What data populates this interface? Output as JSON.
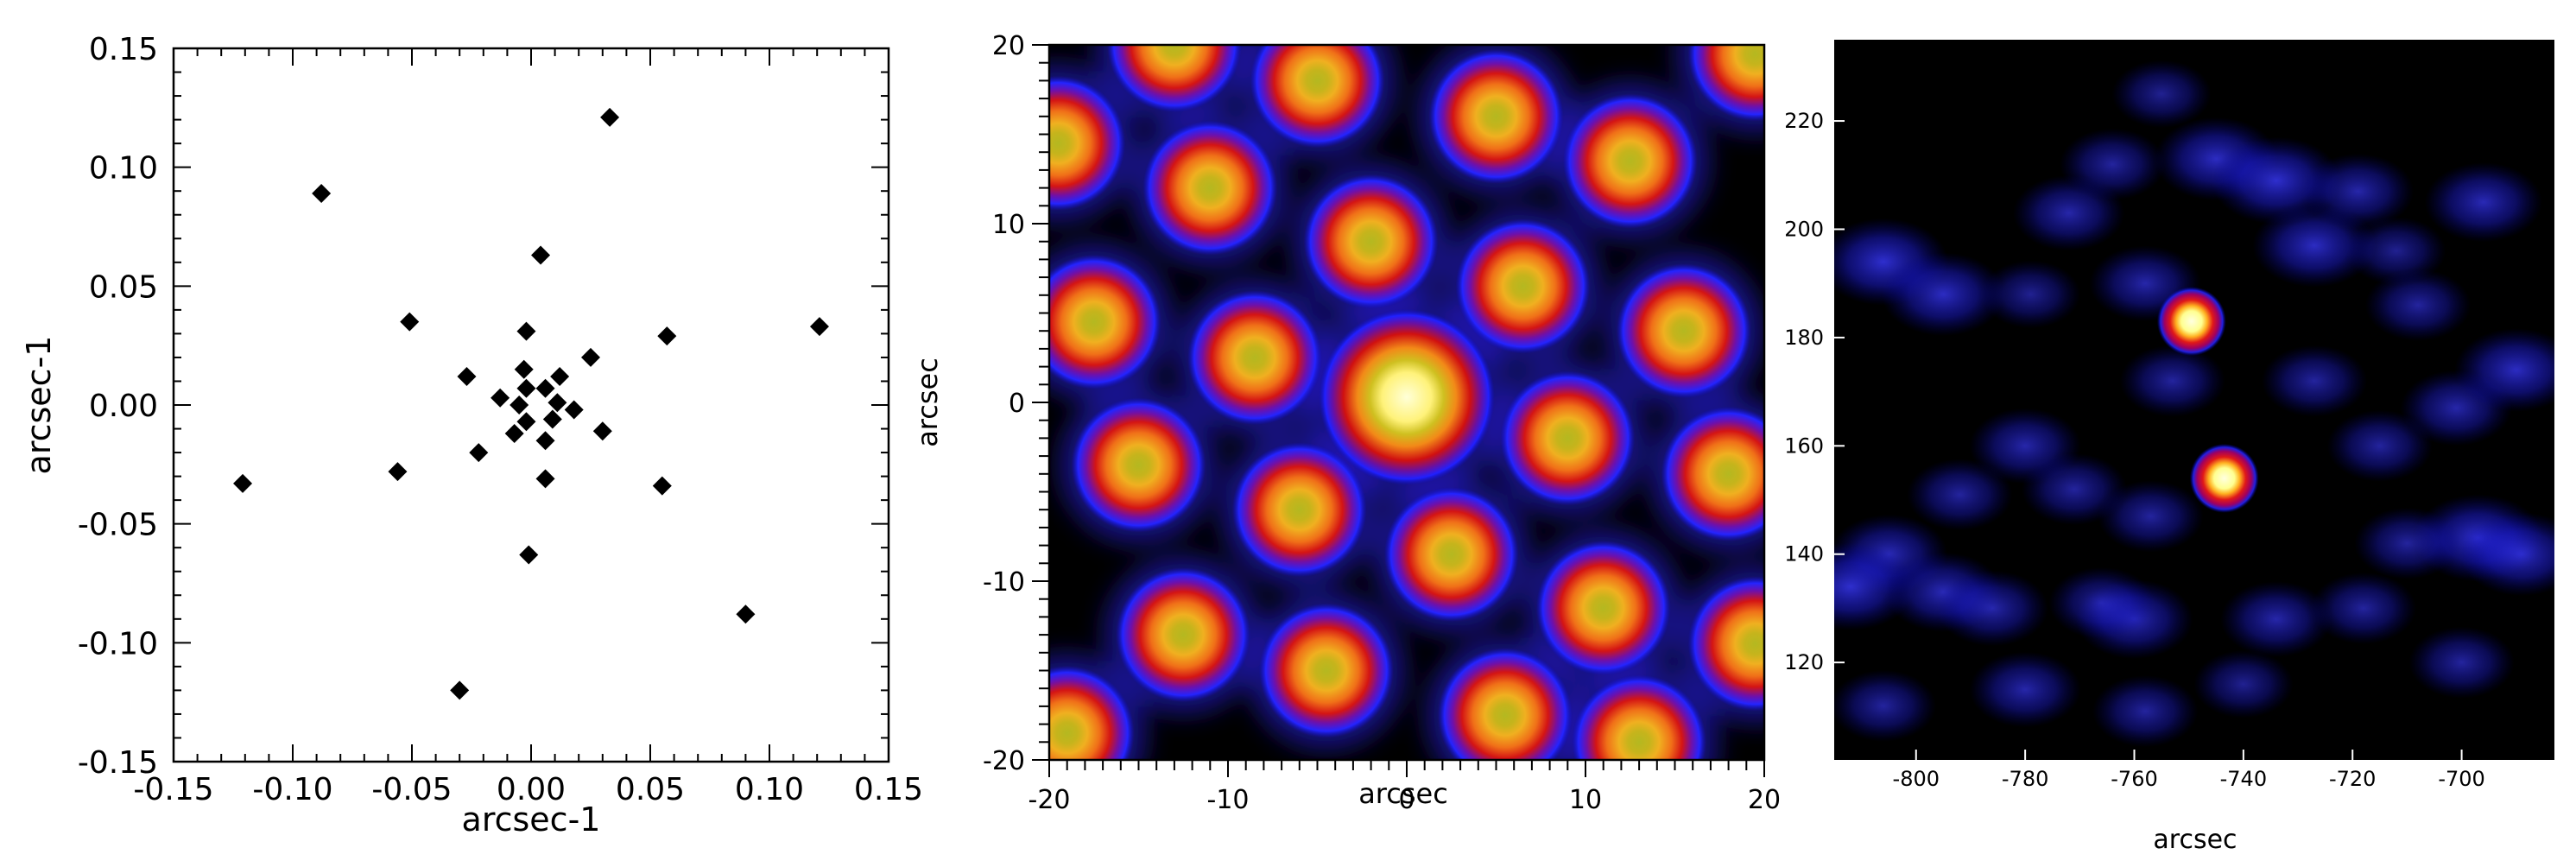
{
  "chart_data": [
    {
      "type": "scatter",
      "xlabel": "arcsec-1",
      "ylabel": "arcsec-1",
      "xlim": [
        -0.15,
        0.15
      ],
      "ylim": [
        -0.15,
        0.15
      ],
      "xticks": [
        -0.15,
        -0.1,
        -0.05,
        0.0,
        0.05,
        0.1,
        0.15
      ],
      "yticks": [
        -0.15,
        -0.1,
        -0.05,
        0.0,
        0.05,
        0.1,
        0.15
      ],
      "xtick_labels": [
        "-0.15",
        "-0.10",
        "-0.05",
        "0.00",
        "0.05",
        "0.10",
        "0.15"
      ],
      "ytick_labels": [
        "-0.15",
        "-0.10",
        "-0.05",
        "0.00",
        "0.05",
        "0.10",
        "0.15"
      ],
      "marker": "diamond",
      "marker_color": "#000000",
      "points": [
        {
          "x": 0.033,
          "y": 0.121
        },
        {
          "x": -0.088,
          "y": 0.089
        },
        {
          "x": 0.004,
          "y": 0.063
        },
        {
          "x": -0.051,
          "y": 0.035
        },
        {
          "x": 0.121,
          "y": 0.033
        },
        {
          "x": -0.002,
          "y": 0.031
        },
        {
          "x": 0.057,
          "y": 0.029
        },
        {
          "x": 0.025,
          "y": 0.02
        },
        {
          "x": -0.003,
          "y": 0.015
        },
        {
          "x": -0.027,
          "y": 0.012
        },
        {
          "x": 0.012,
          "y": 0.012
        },
        {
          "x": -0.002,
          "y": 0.007
        },
        {
          "x": 0.006,
          "y": 0.007
        },
        {
          "x": -0.013,
          "y": 0.003
        },
        {
          "x": 0.011,
          "y": 0.001
        },
        {
          "x": -0.005,
          "y": 0.0
        },
        {
          "x": 0.018,
          "y": -0.002
        },
        {
          "x": -0.002,
          "y": -0.007
        },
        {
          "x": 0.009,
          "y": -0.006
        },
        {
          "x": -0.007,
          "y": -0.012
        },
        {
          "x": 0.03,
          "y": -0.011
        },
        {
          "x": 0.006,
          "y": -0.015
        },
        {
          "x": -0.022,
          "y": -0.02
        },
        {
          "x": -0.121,
          "y": -0.033
        },
        {
          "x": -0.056,
          "y": -0.028
        },
        {
          "x": 0.006,
          "y": -0.031
        },
        {
          "x": 0.055,
          "y": -0.034
        },
        {
          "x": -0.001,
          "y": -0.063
        },
        {
          "x": 0.09,
          "y": -0.088
        },
        {
          "x": -0.03,
          "y": -0.12
        }
      ]
    },
    {
      "type": "heatmap",
      "xlabel": "arcsec",
      "ylabel": "arcsec",
      "xlim": [
        -20,
        20
      ],
      "ylim": [
        -20,
        20
      ],
      "xticks": [
        -20,
        -10,
        0,
        10,
        20
      ],
      "yticks": [
        -20,
        -10,
        0,
        10,
        20
      ],
      "xtick_labels": [
        "-20",
        "-10",
        "0",
        "10",
        "20"
      ],
      "ytick_labels": [
        "-20",
        "-10",
        "0",
        "10",
        "20"
      ],
      "colormap": [
        "#000000",
        "#1a10ff",
        "#cc0010",
        "#ff6010",
        "#f0c010",
        "#ffffc0"
      ],
      "peaks": [
        {
          "x": 0,
          "y": 0.3,
          "level": 1.0
        },
        {
          "x": -11,
          "y": 12,
          "level": 0.75
        },
        {
          "x": -5,
          "y": 18,
          "level": 0.75
        },
        {
          "x": 5,
          "y": 16,
          "level": 0.75
        },
        {
          "x": 12.5,
          "y": 13.5,
          "level": 0.75
        },
        {
          "x": -2,
          "y": 9,
          "level": 0.75
        },
        {
          "x": 6.5,
          "y": 6.5,
          "level": 0.75
        },
        {
          "x": -17.5,
          "y": 4.5,
          "level": 0.75
        },
        {
          "x": -8.5,
          "y": 2.5,
          "level": 0.75
        },
        {
          "x": 15.5,
          "y": 4,
          "level": 0.75
        },
        {
          "x": 9,
          "y": -2,
          "level": 0.75
        },
        {
          "x": -15,
          "y": -3.5,
          "level": 0.75
        },
        {
          "x": 18,
          "y": -4,
          "level": 0.75
        },
        {
          "x": -6,
          "y": -6,
          "level": 0.75
        },
        {
          "x": 2.5,
          "y": -8.5,
          "level": 0.75
        },
        {
          "x": 11,
          "y": -11.5,
          "level": 0.75
        },
        {
          "x": -12.5,
          "y": -13,
          "level": 0.75
        },
        {
          "x": -4.5,
          "y": -15,
          "level": 0.75
        },
        {
          "x": 5.5,
          "y": -17.5,
          "level": 0.75
        },
        {
          "x": 13,
          "y": -19,
          "level": 0.75
        },
        {
          "x": -19,
          "y": -18.5,
          "level": 0.75
        },
        {
          "x": -13,
          "y": 20,
          "level": 0.75
        },
        {
          "x": 19.5,
          "y": 19.5,
          "level": 0.75
        },
        {
          "x": -19.5,
          "y": 14.5,
          "level": 0.75
        },
        {
          "x": 19.5,
          "y": -13.5,
          "level": 0.75
        }
      ]
    },
    {
      "type": "heatmap",
      "xlabel": "arcsec",
      "ylabel": "",
      "xlim": [
        -815,
        -683
      ],
      "ylim": [
        102,
        235
      ],
      "xticks": [
        -800,
        -780,
        -760,
        -740,
        -720,
        -700
      ],
      "yticks": [
        120,
        140,
        160,
        180,
        200,
        220
      ],
      "xtick_labels": [
        "-800",
        "-780",
        "-760",
        "-740",
        "-720",
        "-700"
      ],
      "ytick_labels": [
        "120",
        "140",
        "160",
        "180",
        "200",
        "220"
      ],
      "colormap": [
        "#000000",
        "#0000c8",
        "#3030ff",
        "#cc0010",
        "#ff8010",
        "#ffffa0"
      ],
      "sources": [
        {
          "x": -749.5,
          "y": 183,
          "level": 1.0
        },
        {
          "x": -743.5,
          "y": 154,
          "level": 1.0
        }
      ],
      "background_blobs": [
        {
          "x": -806,
          "y": 194,
          "level": 0.5
        },
        {
          "x": -795,
          "y": 188,
          "level": 0.45
        },
        {
          "x": -779,
          "y": 188,
          "level": 0.25
        },
        {
          "x": -772,
          "y": 203,
          "level": 0.35
        },
        {
          "x": -764,
          "y": 212,
          "level": 0.3
        },
        {
          "x": -755,
          "y": 225,
          "level": 0.25
        },
        {
          "x": -745,
          "y": 213,
          "level": 0.45
        },
        {
          "x": -734,
          "y": 209,
          "level": 0.5
        },
        {
          "x": -727,
          "y": 197,
          "level": 0.45
        },
        {
          "x": -719,
          "y": 207,
          "level": 0.35
        },
        {
          "x": -708,
          "y": 186,
          "level": 0.3
        },
        {
          "x": -696,
          "y": 205,
          "level": 0.4
        },
        {
          "x": -712,
          "y": 196,
          "level": 0.25
        },
        {
          "x": -758,
          "y": 190,
          "level": 0.35
        },
        {
          "x": -753,
          "y": 172,
          "level": 0.3
        },
        {
          "x": -727,
          "y": 172,
          "level": 0.3
        },
        {
          "x": -715,
          "y": 160,
          "level": 0.3
        },
        {
          "x": -701,
          "y": 167,
          "level": 0.35
        },
        {
          "x": -690,
          "y": 174,
          "level": 0.45
        },
        {
          "x": -697,
          "y": 143,
          "level": 0.5
        },
        {
          "x": -689,
          "y": 140,
          "level": 0.45
        },
        {
          "x": -710,
          "y": 142,
          "level": 0.3
        },
        {
          "x": -780,
          "y": 160,
          "level": 0.35
        },
        {
          "x": -792,
          "y": 151,
          "level": 0.3
        },
        {
          "x": -771,
          "y": 152,
          "level": 0.3
        },
        {
          "x": -757,
          "y": 147,
          "level": 0.3
        },
        {
          "x": -805,
          "y": 140,
          "level": 0.4
        },
        {
          "x": -812,
          "y": 134,
          "level": 0.5
        },
        {
          "x": -795,
          "y": 133,
          "level": 0.4
        },
        {
          "x": -786,
          "y": 130,
          "level": 0.35
        },
        {
          "x": -760,
          "y": 128,
          "level": 0.4
        },
        {
          "x": -766,
          "y": 131,
          "level": 0.3
        },
        {
          "x": -734,
          "y": 128,
          "level": 0.35
        },
        {
          "x": -718,
          "y": 130,
          "level": 0.3
        },
        {
          "x": -700,
          "y": 120,
          "level": 0.3
        },
        {
          "x": -780,
          "y": 115,
          "level": 0.35
        },
        {
          "x": -758,
          "y": 111,
          "level": 0.3
        },
        {
          "x": -740,
          "y": 116,
          "level": 0.25
        },
        {
          "x": -806,
          "y": 112,
          "level": 0.3
        }
      ]
    }
  ]
}
